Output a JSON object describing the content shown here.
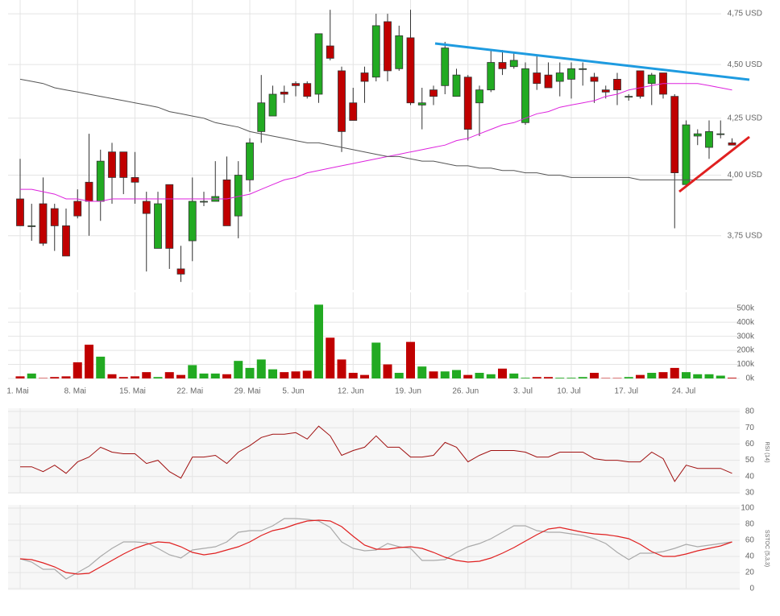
{
  "chart_data": [
    {
      "type": "candlestick",
      "log_scale": true,
      "grid": true,
      "ylim": [
        3.54,
        4.82
      ],
      "yticks": [
        {
          "value": 3.75,
          "label": "3,75 USD"
        },
        {
          "value": 4.0,
          "label": "4,00 USD"
        },
        {
          "value": 4.25,
          "label": "4,25 USD"
        },
        {
          "value": 4.5,
          "label": "4,50 USD"
        },
        {
          "value": 4.75,
          "label": "4,75 USD"
        }
      ],
      "up_color": "#22aa22",
      "down_color": "#c00000",
      "open": [
        3.9,
        3.79,
        3.88,
        3.86,
        3.79,
        3.89,
        3.97,
        3.89,
        4.1,
        4.1,
        3.99,
        3.89,
        3.7,
        3.96,
        3.62,
        3.73,
        3.89,
        3.89,
        3.98,
        3.83,
        3.98,
        4.19,
        4.26,
        4.37,
        4.41,
        4.41,
        4.36,
        4.59,
        4.47,
        4.32,
        4.46,
        4.44,
        4.71,
        4.48,
        4.63,
        4.31,
        4.38,
        4.4,
        4.35,
        4.44,
        4.32,
        4.38,
        4.51,
        4.49,
        4.23,
        4.46,
        4.45,
        4.42,
        4.43,
        4.48,
        4.44,
        4.38,
        4.43,
        4.35,
        4.47,
        4.41,
        4.46,
        4.35,
        3.96,
        4.17,
        4.12,
        4.18,
        4.14
      ],
      "high": [
        4.07,
        3.88,
        3.99,
        3.88,
        3.86,
        3.94,
        4.18,
        4.11,
        4.14,
        4.1,
        4.1,
        3.93,
        3.93,
        3.96,
        3.71,
        3.99,
        3.93,
        4.06,
        4.08,
        4.06,
        4.16,
        4.45,
        4.4,
        4.4,
        4.42,
        4.42,
        4.65,
        4.77,
        4.49,
        4.39,
        4.49,
        4.75,
        4.75,
        4.69,
        4.77,
        4.39,
        4.4,
        4.61,
        4.48,
        4.45,
        4.4,
        4.57,
        4.57,
        4.56,
        4.51,
        4.54,
        4.51,
        4.51,
        4.51,
        4.51,
        4.46,
        4.4,
        4.46,
        4.36,
        4.47,
        4.46,
        4.46,
        4.36,
        4.24,
        4.2,
        4.24,
        4.24,
        4.16
      ],
      "low": [
        3.79,
        3.73,
        3.71,
        3.69,
        3.67,
        3.82,
        3.75,
        3.81,
        3.88,
        3.92,
        3.88,
        3.61,
        3.7,
        3.62,
        3.57,
        3.65,
        3.87,
        3.89,
        3.79,
        3.74,
        3.93,
        4.14,
        4.26,
        4.32,
        4.35,
        4.34,
        4.32,
        4.52,
        4.1,
        4.24,
        4.32,
        4.42,
        4.42,
        4.47,
        4.31,
        4.2,
        4.31,
        4.36,
        4.35,
        4.15,
        4.17,
        4.37,
        4.45,
        4.48,
        4.22,
        4.38,
        4.39,
        4.35,
        4.34,
        4.4,
        4.32,
        4.34,
        4.31,
        4.33,
        4.34,
        4.31,
        4.34,
        3.78,
        3.96,
        4.13,
        4.07,
        4.16,
        4.13
      ],
      "close": [
        3.79,
        3.79,
        3.72,
        3.79,
        3.67,
        3.83,
        3.89,
        4.06,
        3.99,
        3.99,
        3.97,
        3.84,
        3.88,
        3.7,
        3.6,
        3.89,
        3.89,
        3.91,
        3.79,
        4.0,
        4.14,
        4.32,
        4.36,
        4.36,
        4.4,
        4.35,
        4.65,
        4.53,
        4.19,
        4.24,
        4.42,
        4.69,
        4.47,
        4.64,
        4.32,
        4.32,
        4.35,
        4.58,
        4.45,
        4.2,
        4.38,
        4.51,
        4.48,
        4.52,
        4.48,
        4.41,
        4.39,
        4.46,
        4.48,
        4.48,
        4.42,
        4.37,
        4.38,
        4.35,
        4.35,
        4.45,
        4.36,
        4.01,
        4.22,
        4.18,
        4.19,
        4.18,
        4.13
      ],
      "overlays": [
        {
          "color": "#dd22dd",
          "values": [
            3.94,
            3.94,
            3.93,
            3.92,
            3.9,
            3.9,
            3.89,
            3.89,
            3.9,
            3.9,
            3.9,
            3.9,
            3.9,
            3.9,
            3.9,
            3.9,
            3.9,
            3.9,
            3.9,
            3.91,
            3.92,
            3.94,
            3.96,
            3.98,
            3.99,
            4.01,
            4.02,
            4.03,
            4.04,
            4.05,
            4.06,
            4.07,
            4.08,
            4.09,
            4.1,
            4.11,
            4.12,
            4.13,
            4.15,
            4.16,
            4.18,
            4.2,
            4.22,
            4.23,
            4.25,
            4.27,
            4.28,
            4.3,
            4.31,
            4.32,
            4.33,
            4.35,
            4.36,
            4.38,
            4.39,
            4.4,
            4.41,
            4.41,
            4.41,
            4.41,
            4.4,
            4.39,
            4.38
          ]
        },
        {
          "color": "#555555",
          "values": [
            4.43,
            4.42,
            4.41,
            4.39,
            4.38,
            4.37,
            4.36,
            4.35,
            4.34,
            4.33,
            4.32,
            4.31,
            4.3,
            4.28,
            4.27,
            4.26,
            4.25,
            4.23,
            4.22,
            4.21,
            4.19,
            4.18,
            4.17,
            4.16,
            4.15,
            4.14,
            4.14,
            4.13,
            4.12,
            4.11,
            4.1,
            4.09,
            4.08,
            4.08,
            4.07,
            4.06,
            4.06,
            4.05,
            4.04,
            4.04,
            4.03,
            4.03,
            4.02,
            4.02,
            4.01,
            4.01,
            4.0,
            4.0,
            3.99,
            3.99,
            3.99,
            3.99,
            3.99,
            3.99,
            3.98,
            3.98,
            3.98,
            3.98,
            3.98,
            3.98,
            3.98,
            3.98,
            3.98
          ]
        }
      ]
    },
    {
      "type": "bar",
      "grid": true,
      "categories": [
        "1. Mai",
        null,
        null,
        null,
        null,
        "8. Mai",
        null,
        null,
        null,
        null,
        "15. Mai",
        null,
        null,
        null,
        null,
        "22. Mai",
        null,
        null,
        null,
        null,
        "29. Mai",
        null,
        null,
        null,
        "5. Jun",
        null,
        null,
        null,
        null,
        "12. Jun",
        null,
        null,
        null,
        null,
        "19. Jun",
        null,
        null,
        null,
        null,
        "26. Jun",
        null,
        null,
        null,
        null,
        "3. Jul",
        null,
        null,
        null,
        "10. Jul",
        null,
        null,
        null,
        null,
        "17. Jul",
        null,
        null,
        null,
        null,
        "24. Jul",
        null,
        null,
        null,
        null
      ],
      "values": [
        15000,
        35000,
        3000,
        10000,
        15000,
        115000,
        240000,
        155000,
        30000,
        10000,
        15000,
        45000,
        10000,
        45000,
        25000,
        95000,
        35000,
        35000,
        30000,
        125000,
        75000,
        135000,
        65000,
        45000,
        50000,
        55000,
        525000,
        290000,
        135000,
        40000,
        25000,
        255000,
        100000,
        40000,
        260000,
        85000,
        50000,
        50000,
        60000,
        25000,
        40000,
        30000,
        70000,
        35000,
        5000,
        10000,
        10000,
        5000,
        5000,
        10000,
        40000,
        3000,
        3000,
        10000,
        25000,
        40000,
        45000,
        75000,
        45000,
        30000,
        30000,
        20000,
        5000
      ],
      "ylim": [
        0,
        590000
      ],
      "yticks": [
        {
          "value": 0,
          "label": "0k"
        },
        {
          "value": 100000,
          "label": "100k"
        },
        {
          "value": 200000,
          "label": "200k"
        },
        {
          "value": 300000,
          "label": "300k"
        },
        {
          "value": 400000,
          "label": "400k"
        },
        {
          "value": 500000,
          "label": "500k"
        }
      ]
    },
    {
      "type": "line",
      "ylabel": "RSI (14)",
      "color": "#a01010",
      "grid": true,
      "values": [
        46,
        46,
        43,
        47,
        42,
        49,
        52,
        58,
        55,
        54,
        54,
        48,
        50,
        43,
        39,
        52,
        52,
        53,
        48,
        55,
        59,
        64,
        66,
        66,
        67,
        63,
        71,
        65,
        53,
        56,
        58,
        65,
        58,
        58,
        52,
        52,
        53,
        61,
        58,
        49,
        53,
        56,
        56,
        56,
        55,
        52,
        52,
        55,
        55,
        55,
        51,
        50,
        50,
        49,
        49,
        55,
        51,
        37,
        47,
        45,
        45,
        45,
        42
      ],
      "ylim": [
        30,
        80
      ],
      "yticks": [
        30,
        40,
        50,
        60,
        70,
        80
      ]
    },
    {
      "type": "line",
      "ylabel": "SSTOC (5,3,3)",
      "grid": true,
      "series": [
        {
          "color": "#aaaaaa",
          "values": [
            37,
            33,
            24,
            24,
            12,
            20,
            28,
            40,
            50,
            58,
            58,
            57,
            50,
            42,
            38,
            48,
            50,
            52,
            58,
            70,
            72,
            72,
            78,
            87,
            87,
            86,
            84,
            76,
            58,
            50,
            47,
            48,
            56,
            52,
            50,
            35,
            35,
            36,
            45,
            52,
            56,
            62,
            70,
            78,
            78,
            72,
            70,
            70,
            68,
            66,
            62,
            56,
            45,
            36,
            44,
            44,
            46,
            50,
            55,
            52,
            54,
            56,
            58
          ]
        },
        {
          "color": "#e02020",
          "values": [
            37,
            36,
            32,
            27,
            20,
            18,
            19,
            27,
            35,
            43,
            50,
            55,
            58,
            57,
            52,
            45,
            42,
            44,
            48,
            52,
            58,
            66,
            72,
            75,
            80,
            84,
            85,
            84,
            77,
            65,
            54,
            49,
            49,
            51,
            52,
            50,
            45,
            39,
            35,
            33,
            34,
            38,
            44,
            51,
            59,
            67,
            74,
            76,
            73,
            70,
            68,
            67,
            65,
            62,
            55,
            46,
            40,
            40,
            43,
            47,
            50,
            53,
            58
          ]
        }
      ],
      "ylim": [
        0,
        100
      ],
      "yticks": [
        0,
        20,
        40,
        60,
        80,
        100
      ]
    }
  ]
}
